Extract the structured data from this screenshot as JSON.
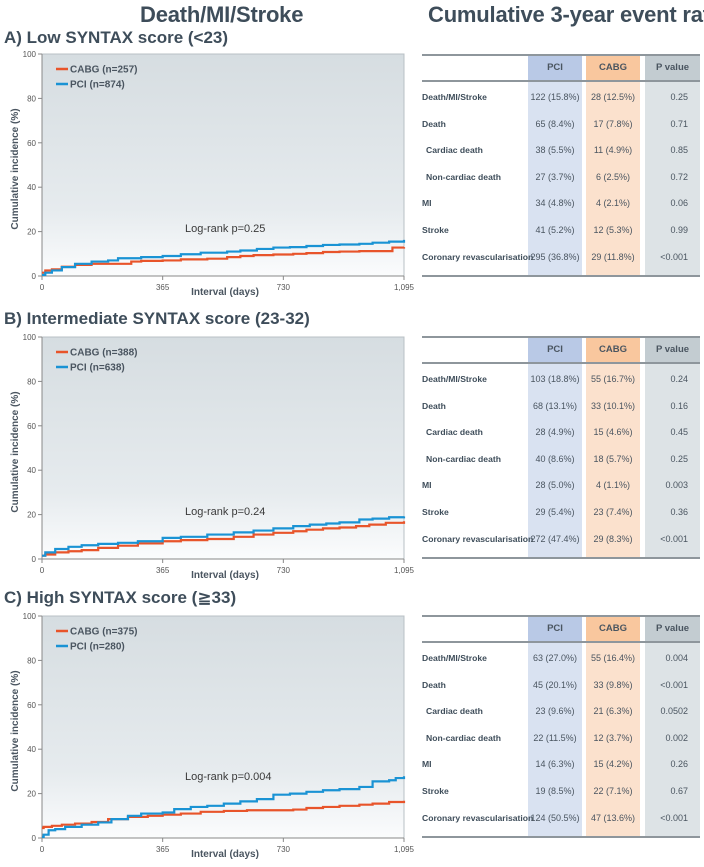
{
  "header": {
    "left_title": "Death/MI/Stroke",
    "right_title": "Cumulative 3-year event rates"
  },
  "colors": {
    "cabg": "#e8542a",
    "pci": "#1a93d4",
    "pci_col": "#d9e2f1",
    "pci_hdr": "#b9c9e6",
    "cabg_col": "#fbe1cd",
    "cabg_hdr": "#f9c79e",
    "p_col": "#dde3e6",
    "p_hdr": "#c3ccd1"
  },
  "table_headers": {
    "label": "",
    "pci": "PCI",
    "cabg": "CABG",
    "p": "P value"
  },
  "chart_data": [
    {
      "type": "line",
      "panel": "A",
      "title": "A) Low SYNTAX score (<23)",
      "xlabel": "Interval  (days)",
      "ylabel": "Cumulative incidence (%)",
      "xlim": [
        0,
        1095
      ],
      "ylim": [
        0,
        100
      ],
      "xticks": [
        0,
        365,
        730,
        1095
      ],
      "xtick_labels": [
        "0",
        "365",
        "730",
        "1,095"
      ],
      "yticks": [
        0,
        20,
        40,
        60,
        80,
        100
      ],
      "ytick_labels": [
        "0",
        "20",
        "40",
        "60",
        "80",
        "100"
      ],
      "annotation": "Log-rank p=0.25",
      "legend": "top-left",
      "series": [
        {
          "name": "CABG (n=257)",
          "key": "cabg",
          "x": [
            0,
            10,
            30,
            60,
            100,
            150,
            230,
            270,
            300,
            365,
            420,
            500,
            560,
            600,
            640,
            700,
            760,
            800,
            850,
            900,
            960,
            1050,
            1060,
            1095
          ],
          "y": [
            1.5,
            2.5,
            3.0,
            4.2,
            5.0,
            5.5,
            5.5,
            6.5,
            6.8,
            7.0,
            7.5,
            7.8,
            8.5,
            9.0,
            9.4,
            9.7,
            10.0,
            10.3,
            10.8,
            11.0,
            11.2,
            11.2,
            12.8,
            13.0
          ]
        },
        {
          "name": "PCI (n=874)",
          "key": "pci",
          "x": [
            0,
            10,
            30,
            60,
            100,
            150,
            200,
            230,
            300,
            365,
            420,
            480,
            560,
            600,
            650,
            700,
            750,
            800,
            850,
            900,
            960,
            1000,
            1050,
            1095
          ],
          "y": [
            0.5,
            1.5,
            2.5,
            4.0,
            5.5,
            6.5,
            7.0,
            8.0,
            8.5,
            9.0,
            9.8,
            10.5,
            11.0,
            11.5,
            12.2,
            12.8,
            13.0,
            13.5,
            14.0,
            14.2,
            14.5,
            15.0,
            15.5,
            16.3
          ]
        }
      ],
      "table": [
        {
          "label": "Death/MI/Stroke",
          "indent": false,
          "pci": "122 (15.8%)",
          "cabg": "28 (12.5%)",
          "p": "0.25"
        },
        {
          "label": "Death",
          "indent": false,
          "pci": "65 (8.4%)",
          "cabg": "17 (7.8%)",
          "p": "0.71"
        },
        {
          "label": "Cardiac death",
          "indent": true,
          "pci": "38 (5.5%)",
          "cabg": "11 (4.9%)",
          "p": "0.85"
        },
        {
          "label": "Non-cardiac death",
          "indent": true,
          "pci": "27 (3.7%)",
          "cabg": "6 (2.5%)",
          "p": "0.72"
        },
        {
          "label": "MI",
          "indent": false,
          "pci": "34 (4.8%)",
          "cabg": "4 (2.1%)",
          "p": "0.06"
        },
        {
          "label": "Stroke",
          "indent": false,
          "pci": "41 (5.2%)",
          "cabg": "12 (5.3%)",
          "p": "0.99"
        },
        {
          "label": "Coronary revascularisation",
          "indent": false,
          "pci": "295 (36.8%)",
          "cabg": "29 (11.8%)",
          "p": "<0.001"
        }
      ]
    },
    {
      "type": "line",
      "panel": "B",
      "title": "B) Intermediate SYNTAX score (23-32)",
      "xlabel": "Interval  (days)",
      "ylabel": "Cumulative incidence (%)",
      "xlim": [
        0,
        1095
      ],
      "ylim": [
        0,
        100
      ],
      "xticks": [
        0,
        365,
        730,
        1095
      ],
      "xtick_labels": [
        "0",
        "365",
        "730",
        "1,095"
      ],
      "yticks": [
        0,
        20,
        40,
        60,
        80,
        100
      ],
      "ytick_labels": [
        "0",
        "20",
        "40",
        "60",
        "80",
        "100"
      ],
      "annotation": "Log-rank p=0.24",
      "legend": "top-left",
      "series": [
        {
          "name": "CABG (n=388)",
          "key": "cabg",
          "x": [
            0,
            10,
            40,
            80,
            120,
            170,
            230,
            290,
            365,
            420,
            500,
            580,
            640,
            700,
            760,
            800,
            850,
            900,
            950,
            990,
            1040,
            1095
          ],
          "y": [
            1.5,
            2.0,
            3.0,
            3.5,
            4.0,
            5.0,
            6.0,
            7.0,
            8.0,
            8.5,
            9.0,
            10.0,
            11.0,
            11.8,
            12.5,
            13.2,
            13.8,
            14.2,
            14.8,
            15.5,
            16.3,
            17.0
          ]
        },
        {
          "name": "PCI (n=638)",
          "key": "pci",
          "x": [
            0,
            10,
            40,
            80,
            120,
            170,
            230,
            290,
            365,
            420,
            500,
            580,
            640,
            700,
            760,
            810,
            860,
            900,
            960,
            1000,
            1050,
            1095
          ],
          "y": [
            1.5,
            3.0,
            4.5,
            5.5,
            6.2,
            6.8,
            7.3,
            8.0,
            9.5,
            10.0,
            11.0,
            12.0,
            12.8,
            13.8,
            14.8,
            15.5,
            16.0,
            16.5,
            17.8,
            18.2,
            18.8,
            19.2
          ]
        }
      ],
      "table": [
        {
          "label": "Death/MI/Stroke",
          "indent": false,
          "pci": "103 (18.8%)",
          "cabg": "55 (16.7%)",
          "p": "0.24"
        },
        {
          "label": "Death",
          "indent": false,
          "pci": "68 (13.1%)",
          "cabg": "33 (10.1%)",
          "p": "0.16"
        },
        {
          "label": "Cardiac death",
          "indent": true,
          "pci": "28 (4.9%)",
          "cabg": "15 (4.6%)",
          "p": "0.45"
        },
        {
          "label": "Non-cardiac death",
          "indent": true,
          "pci": "40 (8.6%)",
          "cabg": "18 (5.7%)",
          "p": "0.25"
        },
        {
          "label": "MI",
          "indent": false,
          "pci": "28 (5.0%)",
          "cabg": "4 (1.1%)",
          "p": "0.003"
        },
        {
          "label": "Stroke",
          "indent": false,
          "pci": "29 (5.4%)",
          "cabg": "23 (7.4%)",
          "p": "0.36"
        },
        {
          "label": "Coronary revascularisation",
          "indent": false,
          "pci": "272 (47.4%)",
          "cabg": "29 (8.3%)",
          "p": "<0.001"
        }
      ]
    },
    {
      "type": "line",
      "panel": "C",
      "title": "C) High SYNTAX score (≧33)",
      "xlabel": "Interval  (days)",
      "ylabel": "Cumulative incidence (%)",
      "xlim": [
        0,
        1095
      ],
      "ylim": [
        0,
        100
      ],
      "xticks": [
        0,
        365,
        730,
        1095
      ],
      "xtick_labels": [
        "0",
        "365",
        "730",
        "1,095"
      ],
      "yticks": [
        0,
        20,
        40,
        60,
        80,
        100
      ],
      "ytick_labels": [
        "0",
        "20",
        "40",
        "60",
        "80",
        "100"
      ],
      "annotation": "Log-rank p=0.004",
      "legend": "top-left",
      "series": [
        {
          "name": "CABG (n=375)",
          "key": "cabg",
          "x": [
            0,
            5,
            30,
            60,
            100,
            150,
            200,
            260,
            320,
            365,
            420,
            480,
            550,
            620,
            700,
            760,
            800,
            850,
            900,
            960,
            1000,
            1050,
            1095
          ],
          "y": [
            4.5,
            5.0,
            5.5,
            6.0,
            6.5,
            7.2,
            8.5,
            9.5,
            10.0,
            10.5,
            11.0,
            11.8,
            12.2,
            12.5,
            12.5,
            12.8,
            13.5,
            14.0,
            14.5,
            15.0,
            15.5,
            16.2,
            16.8
          ]
        },
        {
          "name": "PCI (n=280)",
          "key": "pci",
          "x": [
            0,
            5,
            20,
            40,
            70,
            120,
            170,
            210,
            260,
            300,
            365,
            400,
            450,
            500,
            550,
            600,
            650,
            700,
            750,
            800,
            850,
            900,
            960,
            1000,
            1050,
            1070,
            1095
          ],
          "y": [
            0.5,
            1.5,
            3.5,
            4.0,
            5.0,
            6.0,
            7.0,
            8.5,
            10.0,
            11.0,
            11.5,
            13.0,
            14.0,
            14.5,
            15.5,
            16.5,
            17.5,
            19.5,
            20.0,
            20.8,
            21.5,
            22.0,
            23.0,
            25.5,
            26.0,
            27.0,
            27.8
          ]
        }
      ],
      "table": [
        {
          "label": "Death/MI/Stroke",
          "indent": false,
          "pci": "63 (27.0%)",
          "cabg": "55 (16.4%)",
          "p": "0.004"
        },
        {
          "label": "Death",
          "indent": false,
          "pci": "45 (20.1%)",
          "cabg": "33 (9.8%)",
          "p": "<0.001"
        },
        {
          "label": "Cardiac death",
          "indent": true,
          "pci": "23 (9.6%)",
          "cabg": "21 (6.3%)",
          "p": "0.0502"
        },
        {
          "label": "Non-cardiac death",
          "indent": true,
          "pci": "22 (11.5%)",
          "cabg": "12 (3.7%)",
          "p": "0.002"
        },
        {
          "label": "MI",
          "indent": false,
          "pci": "14 (6.3%)",
          "cabg": "15 (4.2%)",
          "p": "0.26"
        },
        {
          "label": "Stroke",
          "indent": false,
          "pci": "19 (8.5%)",
          "cabg": "22 (7.1%)",
          "p": "0.67"
        },
        {
          "label": "Coronary revascularisation",
          "indent": false,
          "pci": "124 (50.5%)",
          "cabg": "47 (13.6%)",
          "p": "<0.001"
        }
      ]
    }
  ]
}
